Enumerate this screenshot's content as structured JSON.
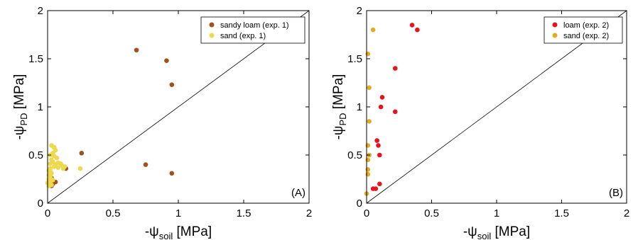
{
  "chart_data": [
    {
      "type": "scatter",
      "panel_label": "(A)",
      "xlabel_prefix": "-ψ",
      "xlabel_sub": "soil",
      "xlabel_unit": " [MPa]",
      "ylabel_prefix": "-ψ",
      "ylabel_sub": "PD",
      "ylabel_unit": " [MPa]",
      "xlim": [
        0,
        2
      ],
      "ylim": [
        0,
        2
      ],
      "xticks": [
        "0",
        "0.5",
        "1",
        "1.5",
        "2"
      ],
      "yticks": [
        "0",
        "0.5",
        "1",
        "1.5",
        "2"
      ],
      "reference_line": "1:1",
      "legend_position": "top-right",
      "grid": false,
      "series": [
        {
          "name": "sandy loam (exp. 1)",
          "color": "#a0521c",
          "points": [
            [
              0.68,
              1.59
            ],
            [
              0.91,
              1.48
            ],
            [
              0.95,
              1.23
            ],
            [
              0.26,
              0.52
            ],
            [
              0.75,
              0.4
            ],
            [
              0.95,
              0.31
            ],
            [
              0.14,
              0.36
            ],
            [
              0.05,
              0.22
            ],
            [
              0.06,
              0.22
            ],
            [
              0.03,
              0.18
            ],
            [
              0.04,
              0.2
            ],
            [
              0.02,
              0.24
            ],
            [
              0.03,
              0.26
            ],
            [
              0.02,
              0.2
            ]
          ]
        },
        {
          "name": "sand (exp. 1)",
          "color": "#ecd94e",
          "points": [
            [
              0.03,
              0.6
            ],
            [
              0.05,
              0.58
            ],
            [
              0.06,
              0.55
            ],
            [
              0.04,
              0.52
            ],
            [
              0.02,
              0.5
            ],
            [
              0.05,
              0.49
            ],
            [
              0.07,
              0.47
            ],
            [
              0.03,
              0.45
            ],
            [
              0.04,
              0.43
            ],
            [
              0.02,
              0.41
            ],
            [
              0.06,
              0.4
            ],
            [
              0.08,
              0.42
            ],
            [
              0.1,
              0.41
            ],
            [
              0.05,
              0.38
            ],
            [
              0.08,
              0.37
            ],
            [
              0.11,
              0.39
            ],
            [
              0.13,
              0.38
            ],
            [
              0.12,
              0.36
            ],
            [
              0.02,
              0.36
            ],
            [
              0.01,
              0.34
            ],
            [
              0.02,
              0.33
            ],
            [
              0.03,
              0.31
            ],
            [
              0.01,
              0.29
            ],
            [
              0.02,
              0.27
            ],
            [
              0.01,
              0.25
            ],
            [
              0.02,
              0.23
            ],
            [
              0.01,
              0.22
            ],
            [
              0.02,
              0.2
            ],
            [
              0.03,
              0.19
            ],
            [
              0.01,
              0.18
            ],
            [
              0.02,
              0.21
            ],
            [
              0.04,
              0.24
            ],
            [
              0.25,
              0.36
            ],
            [
              0.0,
              0.21
            ]
          ]
        }
      ]
    },
    {
      "type": "scatter",
      "panel_label": "(B)",
      "xlabel_prefix": "-ψ",
      "xlabel_sub": "soil",
      "xlabel_unit": " [MPa]",
      "ylabel_prefix": "-ψ",
      "ylabel_sub": "PD",
      "ylabel_unit": " [MPa]",
      "xlim": [
        0,
        2
      ],
      "ylim": [
        0,
        2
      ],
      "xticks": [
        "0",
        "0.5",
        "1",
        "1.5",
        "2"
      ],
      "yticks": [
        "0",
        "0.5",
        "1",
        "1.5",
        "2"
      ],
      "reference_line": "1:1",
      "legend_position": "top-right",
      "grid": false,
      "series": [
        {
          "name": "loam (exp. 2)",
          "color": "#e8141c",
          "points": [
            [
              0.35,
              1.85
            ],
            [
              0.39,
              1.8
            ],
            [
              0.22,
              1.4
            ],
            [
              0.12,
              1.1
            ],
            [
              0.11,
              1.0
            ],
            [
              0.22,
              0.95
            ],
            [
              0.08,
              0.65
            ],
            [
              0.09,
              0.6
            ],
            [
              0.1,
              0.5
            ],
            [
              0.1,
              0.2
            ],
            [
              0.05,
              0.15
            ],
            [
              0.07,
              0.15
            ]
          ]
        },
        {
          "name": "sand (exp. 2)",
          "color": "#e3ad22",
          "points": [
            [
              0.05,
              1.8
            ],
            [
              0.01,
              1.55
            ],
            [
              0.02,
              1.2
            ],
            [
              0.02,
              0.85
            ],
            [
              0.01,
              0.6
            ],
            [
              0.02,
              0.5
            ],
            [
              0.01,
              0.45
            ],
            [
              0.01,
              0.35
            ],
            [
              0.01,
              0.3
            ],
            [
              0.0,
              0.1
            ]
          ]
        }
      ]
    }
  ]
}
